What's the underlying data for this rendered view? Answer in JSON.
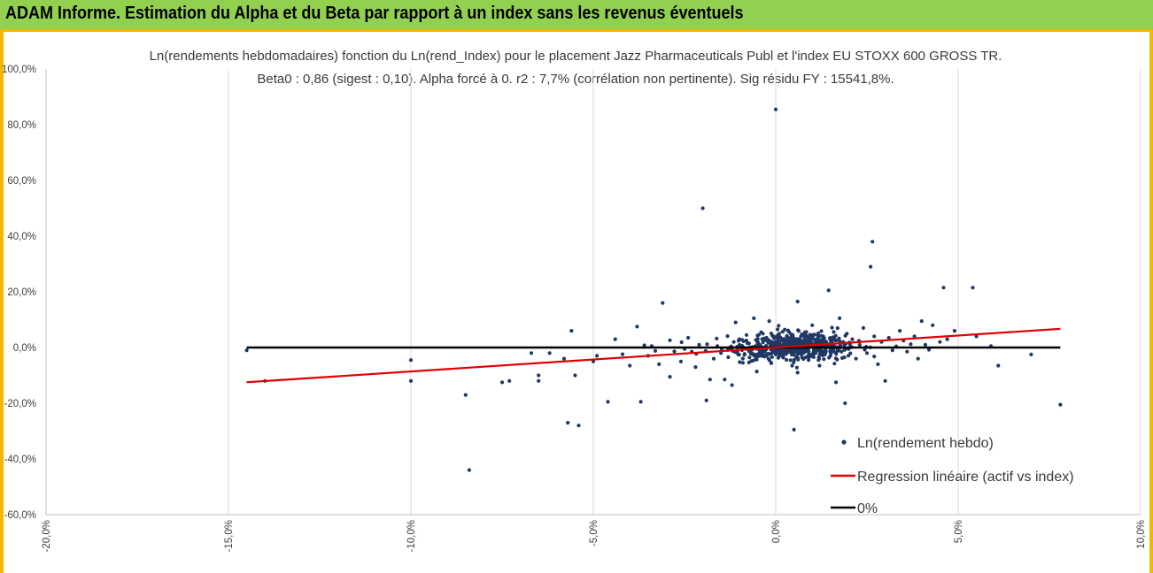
{
  "banner": {
    "title": "ADAM Informe. Estimation du Alpha et du Beta par rapport à un index sans les revenus éventuels"
  },
  "colors": {
    "banner_bg": "#92d050",
    "banner_edge": "#f2b800",
    "points": "#203864",
    "regression": "#e00000",
    "zero_line": "#000000"
  },
  "chart_data": {
    "type": "scatter",
    "title": [
      "Ln(rendements hebdomadaires) fonction du Ln(rend_Index) pour le placement Jazz Pharmaceuticals Publ et l'index EU STOXX 600 GROSS TR.",
      "Beta0 : 0,86 (sigest : 0,10). Alpha forcé à 0. r2 : 7,7% (corrélation non pertinente). Sig résidu FY : 15541,8%."
    ],
    "xlabel": "",
    "ylabel": "",
    "xlim": [
      -20,
      10
    ],
    "ylim": [
      -60,
      100
    ],
    "x_unit": "%",
    "y_unit": "%",
    "xticks": [
      "-20,0%",
      "-15,0%",
      "-10,0%",
      "-5,0%",
      "0,0%",
      "5,0%",
      "10,0%"
    ],
    "yticks": [
      "100,0%",
      "80,0%",
      "60,0%",
      "40,0%",
      "20,0%",
      "0,0%",
      "-20,0%",
      "-40,0%",
      "-60,0%"
    ],
    "grid": "vertical",
    "legend_position": "bottom-right",
    "series": [
      {
        "name": "Ln(rendement hebdo)",
        "kind": "points",
        "notable_points": [
          [
            -14.5,
            -1.0
          ],
          [
            -14.0,
            -12.0
          ],
          [
            -10.0,
            -4.5
          ],
          [
            -10.0,
            -12.0
          ],
          [
            -8.5,
            -17.0
          ],
          [
            -8.4,
            -44.0
          ],
          [
            -7.5,
            -12.5
          ],
          [
            -7.3,
            -12.0
          ],
          [
            -6.7,
            -2.0
          ],
          [
            -6.5,
            -10.0
          ],
          [
            -6.5,
            -12.0
          ],
          [
            -6.2,
            -2.0
          ],
          [
            -5.8,
            -4.0
          ],
          [
            -5.6,
            6.0
          ],
          [
            -5.7,
            -27.0
          ],
          [
            -5.5,
            -10.0
          ],
          [
            -5.4,
            -28.0
          ],
          [
            -5.0,
            -5.0
          ],
          [
            -4.9,
            -3.0
          ],
          [
            -4.6,
            -19.5
          ],
          [
            -4.4,
            3.0
          ],
          [
            -4.0,
            -6.5
          ],
          [
            -3.8,
            7.5
          ],
          [
            -3.7,
            -19.5
          ],
          [
            -3.5,
            -3.0
          ],
          [
            -3.4,
            0.5
          ],
          [
            -3.2,
            -6.0
          ],
          [
            -3.1,
            16.0
          ],
          [
            -2.9,
            -10.5
          ],
          [
            -2.6,
            -5.0
          ],
          [
            -2.5,
            -0.5
          ],
          [
            -2.4,
            3.5
          ],
          [
            -2.3,
            -1.5
          ],
          [
            -2.2,
            -7.0
          ],
          [
            -2.1,
            1.0
          ],
          [
            -2.0,
            50.0
          ],
          [
            -1.9,
            -19.0
          ],
          [
            -1.8,
            -11.5
          ],
          [
            -1.7,
            -4.0
          ],
          [
            -1.6,
            0.5
          ],
          [
            -1.5,
            -2.0
          ],
          [
            -1.4,
            -11.5
          ],
          [
            -1.3,
            -3.5
          ],
          [
            -1.2,
            -13.5
          ],
          [
            -1.15,
            2.0
          ],
          [
            -1.1,
            9.0
          ],
          [
            -1.05,
            -1.5
          ],
          [
            -1.0,
            3.0
          ],
          [
            -0.9,
            -5.5
          ],
          [
            -0.8,
            4.5
          ],
          [
            -0.7,
            -1.0
          ],
          [
            -0.6,
            10.5
          ],
          [
            -0.55,
            -3.0
          ],
          [
            -0.5,
            1.5
          ],
          [
            -0.45,
            -2.0
          ],
          [
            -0.4,
            5.5
          ],
          [
            -0.35,
            0.0
          ],
          [
            -0.3,
            -1.5
          ],
          [
            -0.25,
            3.5
          ],
          [
            -0.2,
            -4.0
          ],
          [
            -0.15,
            2.0
          ],
          [
            -0.1,
            -0.5
          ],
          [
            -0.05,
            1.0
          ],
          [
            0.0,
            85.5
          ],
          [
            0.0,
            -2.5
          ],
          [
            0.05,
            6.5
          ],
          [
            0.1,
            -1.0
          ],
          [
            0.15,
            2.5
          ],
          [
            0.2,
            -3.5
          ],
          [
            0.25,
            0.5
          ],
          [
            0.3,
            4.0
          ],
          [
            0.35,
            -1.5
          ],
          [
            0.4,
            1.5
          ],
          [
            0.45,
            -6.5
          ],
          [
            0.5,
            3.0
          ],
          [
            0.55,
            -0.5
          ],
          [
            0.6,
            16.5
          ],
          [
            0.6,
            -9.0
          ],
          [
            0.5,
            -29.5
          ],
          [
            0.7,
            2.0
          ],
          [
            0.75,
            -2.0
          ],
          [
            0.8,
            5.5
          ],
          [
            0.85,
            0.0
          ],
          [
            0.9,
            -4.5
          ],
          [
            0.95,
            1.5
          ],
          [
            1.0,
            8.0
          ],
          [
            1.05,
            -1.0
          ],
          [
            1.1,
            2.5
          ],
          [
            1.2,
            -6.5
          ],
          [
            1.25,
            0.5
          ],
          [
            1.3,
            4.0
          ],
          [
            1.35,
            -2.5
          ],
          [
            1.4,
            1.0
          ],
          [
            1.45,
            20.5
          ],
          [
            1.5,
            -3.0
          ],
          [
            1.6,
            3.5
          ],
          [
            1.65,
            -12.5
          ],
          [
            1.7,
            0.0
          ],
          [
            1.75,
            10.5
          ],
          [
            1.8,
            -1.5
          ],
          [
            1.85,
            2.0
          ],
          [
            1.9,
            -20.0
          ],
          [
            1.95,
            5.0
          ],
          [
            2.0,
            -0.5
          ],
          [
            2.1,
            3.0
          ],
          [
            2.2,
            -4.0
          ],
          [
            2.3,
            1.0
          ],
          [
            2.4,
            7.0
          ],
          [
            2.5,
            -2.0
          ],
          [
            2.6,
            29.0
          ],
          [
            2.65,
            38.0
          ],
          [
            2.7,
            4.0
          ],
          [
            2.8,
            -6.0
          ],
          [
            2.9,
            2.0
          ],
          [
            3.0,
            -12.0
          ],
          [
            3.1,
            3.5
          ],
          [
            3.2,
            -1.0
          ],
          [
            3.4,
            6.0
          ],
          [
            3.5,
            2.5
          ],
          [
            3.6,
            -1.5
          ],
          [
            3.8,
            4.0
          ],
          [
            3.9,
            -4.0
          ],
          [
            4.0,
            9.5
          ],
          [
            4.1,
            1.0
          ],
          [
            4.3,
            8.0
          ],
          [
            4.5,
            2.0
          ],
          [
            4.6,
            21.5
          ],
          [
            4.7,
            3.0
          ],
          [
            4.9,
            6.0
          ],
          [
            5.4,
            21.5
          ],
          [
            5.5,
            4.0
          ],
          [
            5.9,
            0.5
          ],
          [
            6.1,
            -6.5
          ],
          [
            7.0,
            -2.5
          ],
          [
            7.8,
            -20.5
          ],
          [
            -0.02,
            0.9
          ],
          [
            0.12,
            1.3
          ],
          [
            -0.42,
            0.7
          ],
          [
            0.64,
            0.2
          ],
          [
            -0.78,
            1.6
          ],
          [
            0.88,
            -0.7
          ],
          [
            1.12,
            0.9
          ],
          [
            -1.22,
            0.4
          ],
          [
            1.38,
            2.1
          ],
          [
            -1.48,
            -0.6
          ],
          [
            1.58,
            -0.2
          ],
          [
            -1.88,
            1.2
          ],
          [
            2.02,
            1.8
          ],
          [
            -2.18,
            -2.3
          ],
          [
            2.28,
            2.4
          ],
          [
            -2.58,
            1.9
          ],
          [
            2.48,
            0.3
          ],
          [
            -2.78,
            -1.4
          ],
          [
            0.32,
            -0.6
          ],
          [
            -0.62,
            -0.4
          ],
          [
            0.72,
            1.1
          ],
          [
            -0.92,
            0.6
          ],
          [
            0.22,
            3.1
          ],
          [
            -0.32,
            -2.9
          ],
          [
            1.02,
            -2.2
          ],
          [
            -1.02,
            2.4
          ],
          [
            1.72,
            -1.1
          ],
          [
            -1.62,
            3.2
          ],
          [
            1.92,
            1.4
          ],
          [
            -1.92,
            -1.2
          ],
          [
            0.42,
            4.8
          ],
          [
            -0.12,
            -5.5
          ],
          [
            0.92,
            3.6
          ],
          [
            -0.72,
            -3.6
          ],
          [
            1.32,
            -4.2
          ],
          [
            -1.32,
            4.1
          ],
          [
            3.3,
            0.4
          ],
          [
            3.7,
            1.2
          ],
          [
            -3.3,
            -1.2
          ],
          [
            -3.6,
            0.8
          ],
          [
            4.2,
            -0.8
          ],
          [
            -4.2,
            -2.4
          ],
          [
            2.7,
            -3.2
          ],
          [
            -2.9,
            2.6
          ],
          [
            0.08,
            7.8
          ],
          [
            -0.18,
            9.5
          ],
          [
            0.58,
            -7.2
          ],
          [
            -0.52,
            -8.6
          ]
        ]
      },
      {
        "name": "Regression linéaire (actif vs index)",
        "kind": "line",
        "beta": 0.86,
        "alpha": 0,
        "x_range": [
          -14.5,
          7.8
        ]
      },
      {
        "name": "0%",
        "kind": "line",
        "y": 0,
        "x_range": [
          -14.5,
          7.8
        ]
      }
    ]
  }
}
